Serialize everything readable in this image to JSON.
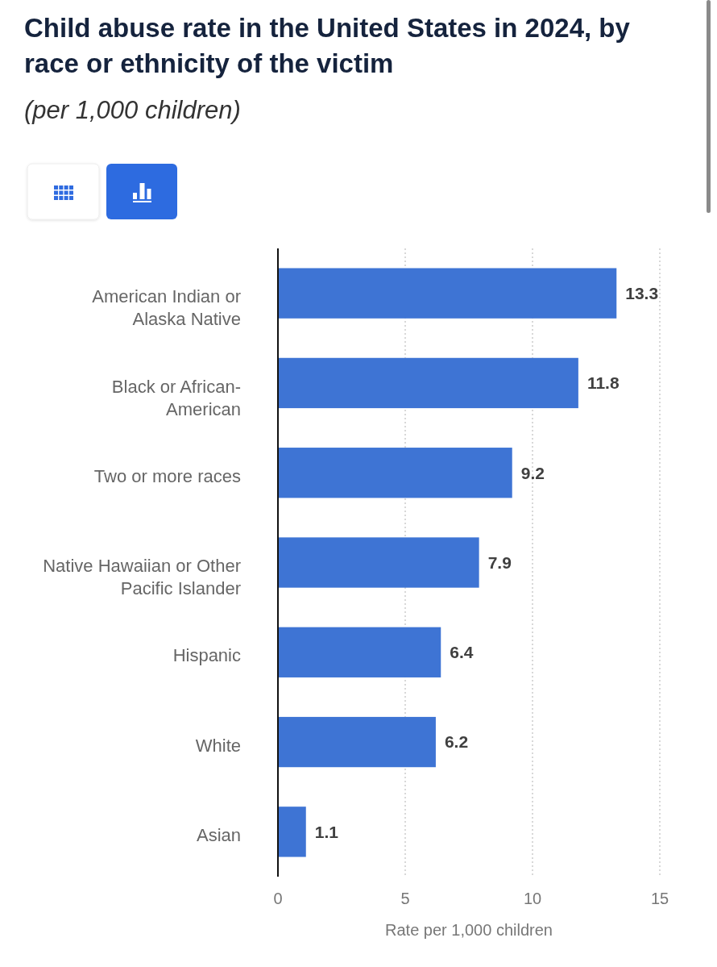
{
  "chart_data": {
    "type": "bar",
    "orientation": "horizontal",
    "title": "Child abuse rate in the United States in 2024, by race or ethnicity of the victim",
    "subtitle": "(per 1,000 children)",
    "xlabel": "Rate per 1,000 children",
    "categories": [
      "American Indian or Alaska Native",
      "Black or African-American",
      "Two or more races",
      "Native Hawaiian or Other Pacific Islander",
      "Hispanic",
      "White",
      "Asian"
    ],
    "values": [
      13.3,
      11.8,
      9.2,
      7.9,
      6.4,
      6.2,
      1.1
    ],
    "color": "#3e74d4",
    "xlim": [
      0,
      15
    ],
    "xticks": [
      0,
      5,
      10,
      15
    ],
    "grid": "x",
    "data_labels": true
  }
}
